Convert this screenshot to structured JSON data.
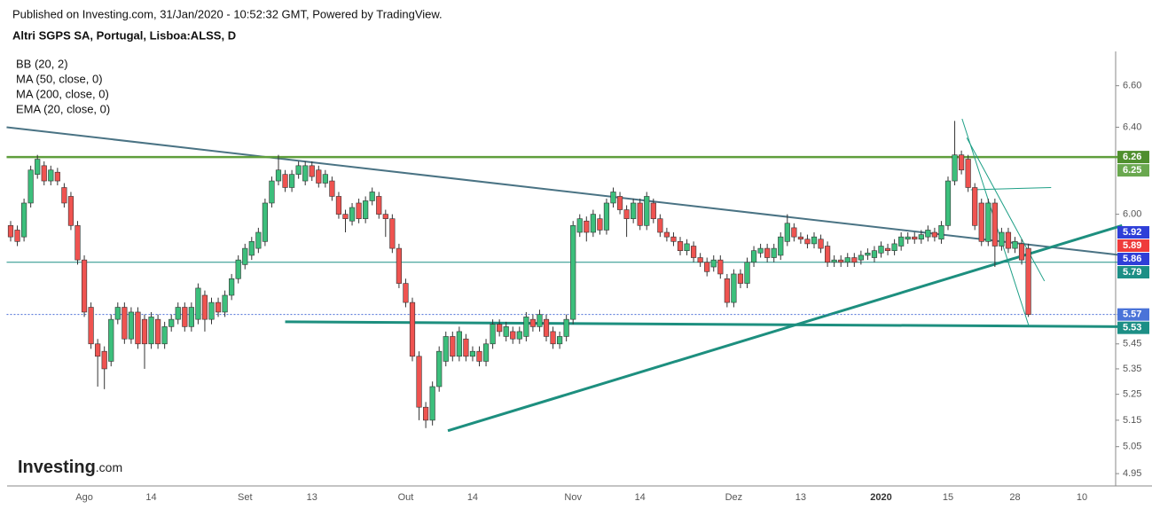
{
  "chart_data": {
    "type": "candlestick",
    "header": "Published on Investing.com, 31/Jan/2020 - 10:52:32 GMT, Powered by TradingView.",
    "title": "Altri SGPS SA, Portugal, Lisboa:ALSS, D",
    "indicators": [
      "BB (20, 2)",
      "MA (50, close, 0)",
      "MA (200, close, 0)",
      "EMA (20, close, 0)"
    ],
    "logo_main": "Investing",
    "logo_suffix": ".com",
    "log_scale": true,
    "grid": false,
    "up_color": "#3cbf7c",
    "down_color": "#ef5350",
    "ylim": [
      4.905,
      6.77
    ],
    "yticks": [
      4.95,
      5.05,
      5.15,
      5.25,
      5.35,
      5.45,
      {
        "value": 6,
        "label": "6.00"
      },
      {
        "value": 6.4,
        "label": "6.40"
      },
      {
        "value": 6.6,
        "label": "6.60"
      }
    ],
    "categories": [
      null,
      null,
      null,
      null,
      null,
      null,
      null,
      null,
      null,
      null,
      null,
      "Ago",
      null,
      null,
      null,
      null,
      null,
      null,
      null,
      null,
      null,
      "14",
      null,
      null,
      null,
      null,
      null,
      null,
      null,
      null,
      null,
      null,
      null,
      null,
      null,
      "Set",
      null,
      null,
      null,
      null,
      null,
      null,
      null,
      null,
      null,
      "13",
      null,
      null,
      null,
      null,
      null,
      null,
      null,
      null,
      null,
      null,
      null,
      null,
      null,
      "Out",
      null,
      null,
      null,
      null,
      null,
      null,
      null,
      null,
      null,
      "14",
      null,
      null,
      null,
      null,
      null,
      null,
      null,
      null,
      null,
      null,
      null,
      null,
      null,
      null,
      "Nov",
      null,
      null,
      null,
      null,
      null,
      null,
      null,
      null,
      null,
      "14",
      null,
      null,
      null,
      null,
      null,
      null,
      null,
      null,
      null,
      null,
      null,
      null,
      null,
      "Dez",
      null,
      null,
      null,
      null,
      null,
      null,
      null,
      null,
      null,
      "13",
      null,
      null,
      null,
      null,
      null,
      null,
      null,
      null,
      null,
      null,
      null,
      "2020",
      null,
      null,
      null,
      null,
      null,
      null,
      null,
      null,
      null,
      "15",
      null,
      null,
      null,
      null,
      null,
      null,
      null,
      null,
      null,
      "28",
      null,
      null,
      null,
      null,
      null,
      null,
      null,
      null,
      null,
      "10"
    ],
    "bold_category": "2020",
    "open": [
      5.95,
      5.93,
      5.9,
      6.05,
      6.18,
      6.22,
      6.15,
      6.19,
      6.12,
      6.08,
      5.95,
      5.8,
      5.6,
      5.45,
      5.42,
      5.38,
      5.55,
      5.6,
      5.47,
      5.58,
      5.55,
      5.45,
      5.55,
      5.45,
      5.52,
      5.55,
      5.6,
      5.52,
      5.55,
      5.65,
      5.55,
      5.62,
      5.58,
      5.65,
      5.72,
      5.78,
      5.82,
      5.85,
      5.88,
      6.05,
      6.15,
      6.18,
      6.12,
      6.18,
      6.15,
      6.22,
      6.2,
      6.14,
      6.15,
      6.08,
      6.0,
      5.97,
      6.05,
      5.98,
      6.06,
      6.08,
      6.0,
      5.98,
      5.85,
      5.7,
      5.62,
      5.4,
      5.2,
      5.15,
      5.28,
      5.38,
      5.48,
      5.4,
      5.47,
      5.4,
      5.42,
      5.38,
      5.45,
      5.53,
      5.48,
      5.5,
      5.47,
      5.48,
      5.55,
      5.52,
      5.55,
      5.5,
      5.45,
      5.48,
      5.55,
      5.92,
      5.97,
      5.92,
      5.98,
      5.93,
      6.05,
      6.08,
      6.02,
      5.98,
      6.05,
      5.95,
      6.05,
      5.98,
      5.92,
      5.9,
      5.88,
      5.84,
      5.86,
      5.81,
      5.79,
      5.77,
      5.8,
      5.72,
      5.62,
      5.74,
      5.7,
      5.79,
      5.83,
      5.85,
      5.81,
      5.82,
      5.88,
      5.94,
      5.9,
      5.89,
      5.87,
      5.89,
      5.86,
      5.79,
      5.8,
      5.79,
      5.81,
      5.8,
      5.82,
      5.81,
      5.83,
      5.85,
      5.84,
      5.86,
      5.89,
      5.9,
      5.89,
      5.9,
      5.92,
      5.89,
      5.95,
      6.15,
      6.27,
      6.25,
      6.12,
      6.05,
      5.88,
      6.05,
      5.86,
      5.92,
      5.85,
      5.87,
      5.85,
      null,
      null,
      null,
      null,
      null,
      null,
      null,
      null
    ],
    "high": [
      5.97,
      5.95,
      6.07,
      6.22,
      6.27,
      6.24,
      6.22,
      6.21,
      6.14,
      6.1,
      5.97,
      5.82,
      5.62,
      5.47,
      5.44,
      5.57,
      5.62,
      5.62,
      5.6,
      5.6,
      5.57,
      5.58,
      5.57,
      5.54,
      5.57,
      5.62,
      5.62,
      5.62,
      5.7,
      5.67,
      5.64,
      5.64,
      5.67,
      5.74,
      5.82,
      5.87,
      5.9,
      5.94,
      6.07,
      6.17,
      6.27,
      6.2,
      6.2,
      6.24,
      6.24,
      6.24,
      6.22,
      6.2,
      6.17,
      6.1,
      6.02,
      6.05,
      6.07,
      6.08,
      6.12,
      6.1,
      6.02,
      6.0,
      5.87,
      5.72,
      5.64,
      5.42,
      5.22,
      5.3,
      5.44,
      5.5,
      5.5,
      5.52,
      5.49,
      5.44,
      5.44,
      5.47,
      5.55,
      5.55,
      5.54,
      5.52,
      5.52,
      5.58,
      5.57,
      5.59,
      5.57,
      5.52,
      5.5,
      5.57,
      5.97,
      6.0,
      5.99,
      6.02,
      6.0,
      6.07,
      6.12,
      6.1,
      6.04,
      6.07,
      6.07,
      6.1,
      6.07,
      6.0,
      5.94,
      5.92,
      5.9,
      5.89,
      5.88,
      5.83,
      5.81,
      5.82,
      5.82,
      5.74,
      5.76,
      5.76,
      5.81,
      5.86,
      5.87,
      5.87,
      5.87,
      5.92,
      6.0,
      5.96,
      5.92,
      5.91,
      5.92,
      5.91,
      5.88,
      5.82,
      5.82,
      5.83,
      5.83,
      5.84,
      5.85,
      5.86,
      5.88,
      5.87,
      5.89,
      5.92,
      5.92,
      5.92,
      5.93,
      5.95,
      5.94,
      5.97,
      6.17,
      6.43,
      6.29,
      6.27,
      6.14,
      6.07,
      6.07,
      6.07,
      5.94,
      5.94,
      5.9,
      5.89,
      5.87,
      null,
      null,
      null,
      null,
      null,
      null,
      null,
      null
    ],
    "low": [
      5.88,
      5.86,
      5.88,
      6.03,
      6.16,
      6.13,
      6.13,
      6.13,
      6.03,
      5.93,
      5.78,
      5.56,
      5.43,
      5.28,
      5.27,
      5.36,
      5.53,
      5.45,
      5.45,
      5.43,
      5.35,
      5.43,
      5.43,
      5.43,
      5.5,
      5.53,
      5.5,
      5.5,
      5.53,
      5.5,
      5.53,
      5.56,
      5.56,
      5.63,
      5.7,
      5.76,
      5.8,
      5.83,
      5.86,
      6.03,
      6.13,
      6.1,
      6.1,
      6.16,
      6.13,
      6.15,
      6.12,
      6.12,
      6.06,
      5.98,
      5.92,
      5.95,
      5.96,
      5.96,
      6.04,
      5.98,
      5.9,
      5.83,
      5.68,
      5.6,
      5.38,
      5.15,
      5.12,
      5.13,
      5.26,
      5.36,
      5.38,
      5.38,
      5.38,
      5.38,
      5.36,
      5.36,
      5.43,
      5.48,
      5.46,
      5.45,
      5.45,
      5.46,
      5.5,
      5.5,
      5.46,
      5.43,
      5.43,
      5.46,
      5.53,
      5.9,
      5.88,
      5.9,
      5.91,
      5.91,
      6.03,
      6.0,
      5.9,
      5.96,
      5.93,
      5.93,
      5.96,
      5.9,
      5.88,
      5.86,
      5.82,
      5.82,
      5.79,
      5.77,
      5.73,
      5.75,
      5.72,
      5.6,
      5.6,
      5.68,
      5.68,
      5.77,
      5.81,
      5.79,
      5.79,
      5.8,
      5.86,
      5.88,
      5.87,
      5.85,
      5.85,
      5.83,
      5.77,
      5.77,
      5.77,
      5.77,
      5.77,
      5.78,
      5.8,
      5.79,
      5.81,
      5.82,
      5.82,
      5.84,
      5.87,
      5.87,
      5.87,
      5.88,
      5.88,
      5.87,
      5.93,
      6.13,
      6.18,
      6.1,
      5.93,
      5.86,
      5.86,
      5.77,
      5.84,
      5.83,
      5.83,
      5.78,
      5.56,
      null,
      null,
      null,
      null,
      null,
      null,
      null,
      null
    ],
    "close": [
      5.9,
      5.88,
      6.05,
      6.2,
      6.25,
      6.15,
      6.2,
      6.15,
      6.05,
      5.95,
      5.8,
      5.58,
      5.45,
      5.4,
      5.35,
      5.55,
      5.6,
      5.47,
      5.58,
      5.45,
      5.45,
      5.56,
      5.45,
      5.52,
      5.55,
      5.6,
      5.52,
      5.6,
      5.68,
      5.55,
      5.62,
      5.58,
      5.65,
      5.72,
      5.8,
      5.85,
      5.88,
      5.92,
      6.05,
      6.15,
      6.2,
      6.12,
      6.18,
      6.22,
      6.22,
      6.17,
      6.14,
      6.18,
      6.08,
      6.0,
      5.98,
      6.03,
      5.98,
      6.06,
      6.1,
      6.0,
      5.98,
      5.85,
      5.7,
      5.62,
      5.4,
      5.2,
      5.15,
      5.28,
      5.42,
      5.48,
      5.4,
      5.5,
      5.4,
      5.42,
      5.38,
      5.45,
      5.53,
      5.5,
      5.52,
      5.47,
      5.5,
      5.56,
      5.52,
      5.57,
      5.48,
      5.45,
      5.48,
      5.55,
      5.95,
      5.98,
      5.92,
      6.0,
      5.93,
      6.05,
      6.1,
      6.02,
      5.98,
      6.05,
      5.95,
      6.08,
      5.98,
      5.92,
      5.9,
      5.88,
      5.84,
      5.87,
      5.81,
      5.79,
      5.75,
      5.8,
      5.74,
      5.62,
      5.74,
      5.7,
      5.79,
      5.84,
      5.85,
      5.81,
      5.85,
      5.9,
      5.96,
      5.9,
      5.89,
      5.87,
      5.9,
      5.85,
      5.79,
      5.8,
      5.79,
      5.81,
      5.79,
      5.82,
      5.83,
      5.84,
      5.86,
      5.84,
      5.87,
      5.9,
      5.9,
      5.89,
      5.91,
      5.93,
      5.9,
      5.95,
      6.15,
      6.27,
      6.2,
      6.12,
      5.95,
      5.88,
      6.05,
      5.86,
      5.92,
      5.85,
      5.88,
      5.8,
      5.57,
      null,
      null,
      null,
      null,
      null,
      null,
      null,
      null
    ],
    "trendlines": [
      {
        "from": [
          -0.6,
          6.4
        ],
        "to": [
          166,
          5.82
        ],
        "color": "#4a7384",
        "width": 2
      },
      {
        "from": [
          -0.6,
          6.26
        ],
        "to": [
          166,
          6.26
        ],
        "color": "#5f9e3c",
        "width": 2.5
      },
      {
        "from": [
          41,
          5.54
        ],
        "to": [
          166,
          5.52
        ],
        "color": "#1d8f7f",
        "width": 3
      },
      {
        "from": [
          65.3,
          5.11
        ],
        "to": [
          166,
          5.95
        ],
        "color": "#1d8f7f",
        "width": 3
      },
      {
        "from": [
          -0.6,
          5.79
        ],
        "to": [
          166,
          5.79
        ],
        "color": "#1d8f86",
        "width": 1
      },
      {
        "from": [
          142.8,
          6.35
        ],
        "to": [
          154.4,
          5.71
        ],
        "color": "#1d9f86",
        "width": 1
      },
      {
        "from": [
          143.4,
          6.11
        ],
        "to": [
          155.4,
          6.12
        ],
        "color": "#1d9f86",
        "width": 1
      },
      {
        "from": [
          142.1,
          6.44
        ],
        "to": [
          152.1,
          5.52
        ],
        "color": "#1d9f86",
        "width": 1
      },
      {
        "from": [
          -0.6,
          5.57
        ],
        "to": [
          166,
          5.57
        ],
        "color": "#4a6fd6",
        "width": 1,
        "dash": true
      }
    ],
    "price_labels": [
      {
        "value": 6.26,
        "color": "#4f8f2e"
      },
      {
        "value": 6.25,
        "color": "#6aa84f"
      },
      {
        "value": 5.92,
        "color": "#2f3fd8"
      },
      {
        "value": 5.89,
        "color": "#ef3b3b"
      },
      {
        "value": 5.86,
        "color": "#2f3fd8"
      },
      {
        "value": 5.79,
        "color": "#1d8f86"
      },
      {
        "value": 5.57,
        "color": "#4a73d8"
      },
      {
        "value": 5.53,
        "color": "#1d8f86"
      }
    ]
  }
}
